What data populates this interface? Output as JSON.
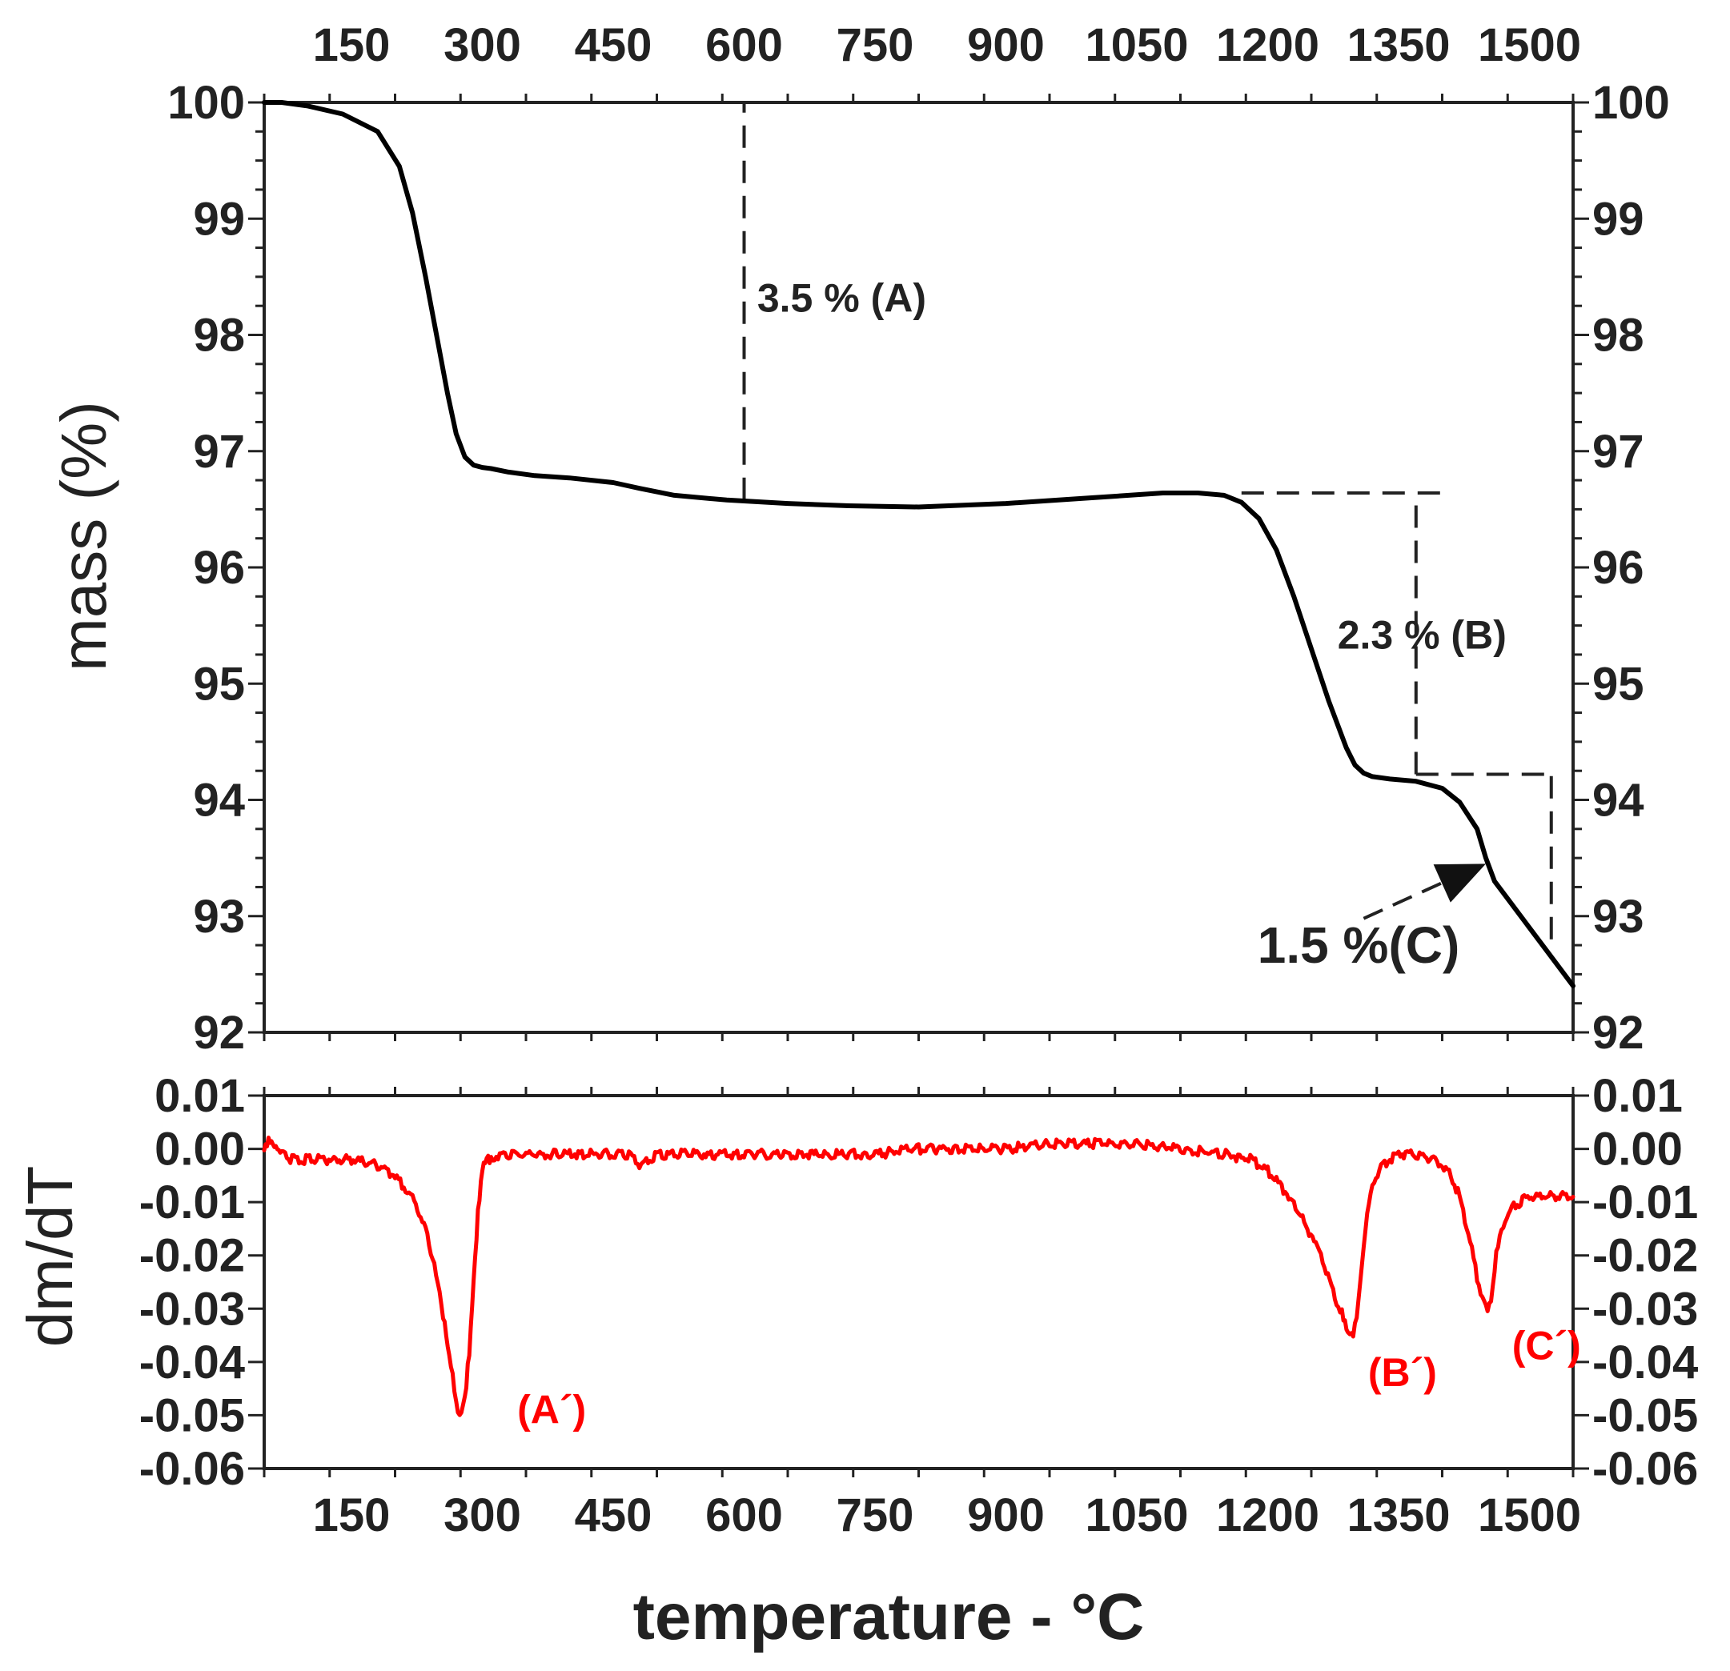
{
  "chart_data": [
    {
      "type": "line",
      "panel": "top",
      "title": "",
      "xlabel": "temperature - °C",
      "ylabel": "mass (%)",
      "xlim": [
        50,
        1550
      ],
      "ylim": [
        92,
        100
      ],
      "xticks": [
        150,
        300,
        450,
        600,
        750,
        900,
        1050,
        1200,
        1350,
        1500
      ],
      "yticks": [
        92,
        93,
        94,
        95,
        96,
        97,
        98,
        99,
        100
      ],
      "grid": false,
      "axes": "box, ticks labelled on all four sides",
      "series": [
        {
          "name": "mass",
          "color": "#000000",
          "x": [
            50,
            70,
            100,
            140,
            180,
            205,
            220,
            235,
            250,
            260,
            270,
            280,
            290,
            300,
            310,
            330,
            360,
            400,
            450,
            480,
            520,
            580,
            650,
            720,
            800,
            900,
            1000,
            1080,
            1120,
            1150,
            1170,
            1190,
            1210,
            1230,
            1250,
            1270,
            1290,
            1300,
            1310,
            1320,
            1340,
            1370,
            1400,
            1420,
            1440,
            1450,
            1460,
            1480,
            1500,
            1520,
            1550
          ],
          "y": [
            100.0,
            100.0,
            99.97,
            99.9,
            99.75,
            99.45,
            99.05,
            98.5,
            97.9,
            97.5,
            97.15,
            96.95,
            96.88,
            96.86,
            96.85,
            96.82,
            96.79,
            96.77,
            96.73,
            96.68,
            96.62,
            96.58,
            96.55,
            96.53,
            96.52,
            96.55,
            96.6,
            96.64,
            96.64,
            96.62,
            96.56,
            96.42,
            96.15,
            95.75,
            95.3,
            94.85,
            94.45,
            94.3,
            94.23,
            94.2,
            94.18,
            94.16,
            94.1,
            93.98,
            93.75,
            93.5,
            93.3,
            93.1,
            92.9,
            92.7,
            92.4
          ]
        }
      ],
      "guides": [
        {
          "kind": "h",
          "y": 100.0,
          "x": [
            50,
            675
          ]
        },
        {
          "kind": "v",
          "x": 600,
          "y": [
            96.58,
            100.0
          ]
        },
        {
          "kind": "h",
          "y": 96.64,
          "x": [
            1170,
            1410
          ]
        },
        {
          "kind": "v",
          "x": 1370,
          "y": [
            94.22,
            96.64
          ]
        },
        {
          "kind": "h",
          "y": 94.22,
          "x": [
            1370,
            1525
          ]
        },
        {
          "kind": "v",
          "x": 1525,
          "y": [
            92.8,
            94.22
          ]
        }
      ],
      "annotations": [
        {
          "text": "3.5 % (A)",
          "x": 615,
          "y": 98.2,
          "size": "normal"
        },
        {
          "text": "2.3 % (B)",
          "x": 1280,
          "y": 95.3,
          "size": "normal"
        },
        {
          "text": "1.5 %(C)",
          "x": 1420,
          "y": 92.6,
          "size": "large"
        }
      ],
      "arrow": {
        "from": [
          1310,
          92.98
        ],
        "to": [
          1450,
          93.45
        ]
      }
    },
    {
      "type": "line",
      "panel": "bottom",
      "title": "",
      "xlabel": "temperature - °C",
      "ylabel": "dm/dT",
      "xlim": [
        50,
        1550
      ],
      "ylim": [
        -0.06,
        0.01
      ],
      "xticks": [
        150,
        300,
        450,
        600,
        750,
        900,
        1050,
        1200,
        1350,
        1500
      ],
      "yticks": [
        -0.06,
        -0.05,
        -0.04,
        -0.03,
        -0.02,
        -0.01,
        0.0,
        0.01
      ],
      "ytick_labels": [
        "-0.06",
        "-0.05",
        "-0.04",
        "-0.03",
        "-0.02",
        "-0.01",
        "0.00",
        "0.01"
      ],
      "grid": false,
      "series": [
        {
          "name": "dm/dT",
          "color": "#ff0000",
          "x": [
            50,
            55,
            60,
            65,
            70,
            80,
            100,
            150,
            180,
            200,
            220,
            235,
            245,
            255,
            262,
            268,
            272,
            276,
            280,
            285,
            290,
            295,
            300,
            305,
            310,
            320,
            350,
            400,
            450,
            470,
            480,
            500,
            550,
            600,
            650,
            700,
            750,
            800,
            850,
            900,
            950,
            1000,
            1050,
            1100,
            1150,
            1180,
            1200,
            1220,
            1240,
            1255,
            1265,
            1275,
            1285,
            1292,
            1298,
            1302,
            1306,
            1312,
            1320,
            1330,
            1340,
            1350,
            1370,
            1390,
            1400,
            1410,
            1420,
            1430,
            1440,
            1448,
            1452,
            1456,
            1462,
            1470,
            1480,
            1490,
            1500,
            1520,
            1550
          ],
          "y": [
            0.0,
            0.002,
            0.001,
            0.0,
            -0.001,
            -0.002,
            -0.002,
            -0.002,
            -0.003,
            -0.005,
            -0.009,
            -0.015,
            -0.022,
            -0.031,
            -0.039,
            -0.045,
            -0.049,
            -0.05,
            -0.047,
            -0.038,
            -0.025,
            -0.012,
            -0.004,
            -0.002,
            -0.002,
            -0.001,
            -0.001,
            -0.001,
            -0.001,
            -0.001,
            -0.003,
            -0.001,
            -0.001,
            -0.001,
            -0.001,
            -0.001,
            -0.001,
            0.0,
            0.0,
            0.0,
            0.001,
            0.001,
            0.001,
            0.0,
            -0.001,
            -0.002,
            -0.004,
            -0.008,
            -0.013,
            -0.018,
            -0.022,
            -0.027,
            -0.031,
            -0.034,
            -0.0345,
            -0.032,
            -0.025,
            -0.015,
            -0.007,
            -0.003,
            -0.002,
            -0.001,
            -0.001,
            -0.002,
            -0.003,
            -0.005,
            -0.009,
            -0.016,
            -0.024,
            -0.029,
            -0.0305,
            -0.028,
            -0.02,
            -0.014,
            -0.011,
            -0.01,
            -0.009,
            -0.009,
            -0.009
          ]
        }
      ],
      "annotations": [
        {
          "text": "(A´)",
          "x": 340,
          "y": -0.0515
        },
        {
          "text": "(B´)",
          "x": 1315,
          "y": -0.0445
        },
        {
          "text": "(C´)",
          "x": 1480,
          "y": -0.0395
        }
      ]
    }
  ]
}
